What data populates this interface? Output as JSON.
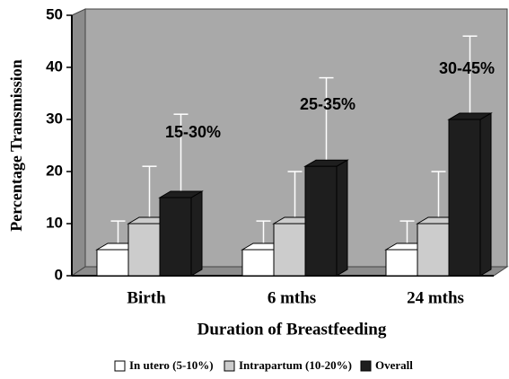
{
  "chart_data": {
    "type": "bar",
    "y_label": "Percentage Transmission",
    "x_label": "Duration of Breastfeeding",
    "categories": [
      "Birth",
      "6 mths",
      "24 mths"
    ],
    "series": [
      {
        "name": "In utero (5-10%)",
        "color": "#ffffff",
        "values": [
          5,
          5,
          5
        ],
        "errors": [
          5.5,
          5.5,
          5.5
        ]
      },
      {
        "name": "Intrapartum (10-20%)",
        "color": "#cccccc",
        "values": [
          10,
          10,
          10
        ],
        "errors": [
          11,
          10,
          10
        ]
      },
      {
        "name": "Overall",
        "color": "#1e1e1e",
        "values": [
          15,
          21,
          30
        ],
        "errors": [
          16,
          17,
          16
        ]
      }
    ],
    "annotations": [
      "15-30%",
      "25-35%",
      "30-45%"
    ],
    "ylim": [
      0,
      50
    ],
    "yticks": [
      0,
      10,
      20,
      30,
      40,
      50
    ]
  }
}
